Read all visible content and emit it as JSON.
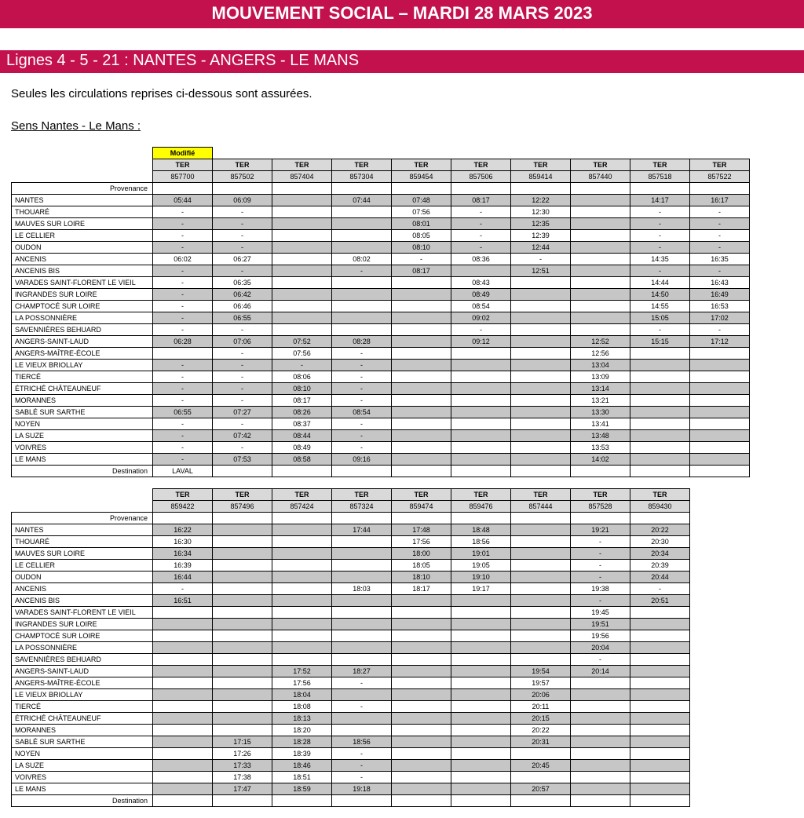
{
  "header": {
    "main_title": "MOUVEMENT SOCIAL – MARDI 28 MARS 2023",
    "sub_title": "Lignes 4 - 5 - 21 : NANTES - ANGERS - LE MANS",
    "notice": "Seules les circulations reprises ci-dessous sont assurées.",
    "direction": "Sens Nantes - Le Mans :"
  },
  "labels": {
    "modified": "Modifié",
    "provenance": "Provenance",
    "destination": "Destination",
    "ter": "TER"
  },
  "styling": {
    "brand_color": "#c3114e",
    "highlight_color": "#ffff00",
    "header_gray": "#d9d9d9",
    "row_alt_gray": "#c6c6c6",
    "font_family": "Arial",
    "title_fontsize_pt": 17,
    "subtitle_fontsize_pt": 15,
    "body_fontsize_pt": 11,
    "table_fontsize_pt": 7
  },
  "tables": [
    {
      "modified_col": 0,
      "stations": [
        "NANTES",
        "THOUARÉ",
        "MAUVES SUR LOIRE",
        "LE CELLIER",
        "OUDON",
        "ANCENIS",
        "ANCENIS BIS",
        "VARADES SAINT-FLORENT LE VIEIL",
        "INGRANDES SUR LOIRE",
        "CHAMPTOCÉ SUR LOIRE",
        "LA POSSONNIÈRE",
        "SAVENNIÈRES BEHUARD",
        "ANGERS-SAINT-LAUD",
        "ANGERS-MAÎTRE-ÉCOLE",
        "LE VIEUX BRIOLLAY",
        "TIERCÉ",
        "ÉTRICHÉ CHÂTEAUNEUF",
        "MORANNES",
        "SABLÉ SUR SARTHE",
        "NOYEN",
        "LA SUZE",
        "VOIVRES",
        "LE MANS"
      ],
      "alt": [
        true,
        false,
        true,
        false,
        true,
        false,
        true,
        false,
        true,
        false,
        true,
        false,
        true,
        false,
        true,
        false,
        true,
        false,
        true,
        false,
        true,
        false,
        true
      ],
      "trains": [
        {
          "type": "TER",
          "num": "857700",
          "dest": "LAVAL",
          "times": [
            "05:44",
            "-",
            "-",
            "-",
            "-",
            "06:02",
            "-",
            "-",
            "-",
            "-",
            "-",
            "-",
            "06:28",
            "",
            "-",
            "-",
            "-",
            "-",
            "06:55",
            "-",
            "-",
            "-",
            "-"
          ]
        },
        {
          "type": "TER",
          "num": "857502",
          "dest": "",
          "times": [
            "06:09",
            "-",
            "-",
            "-",
            "-",
            "06:27",
            "-",
            "06:35",
            "06:42",
            "06:46",
            "06:55",
            "-",
            "07:06",
            "-",
            "-",
            "-",
            "-",
            "-",
            "07:27",
            "-",
            "07:42",
            "-",
            "07:53"
          ]
        },
        {
          "type": "TER",
          "num": "857404",
          "dest": "",
          "times": [
            "",
            "",
            "",
            "",
            "",
            "",
            "",
            "",
            "",
            "",
            "",
            "",
            "07:52",
            "07:56",
            "-",
            "08:06",
            "08:10",
            "08:17",
            "08:26",
            "08:37",
            "08:44",
            "08:49",
            "08:58"
          ]
        },
        {
          "type": "TER",
          "num": "857304",
          "dest": "",
          "times": [
            "07:44",
            "",
            "",
            "",
            "",
            "08:02",
            "-",
            "",
            "",
            "",
            "",
            "",
            "08:28",
            "-",
            "-",
            "-",
            "-",
            "-",
            "08:54",
            "-",
            "-",
            "-",
            "09:16"
          ]
        },
        {
          "type": "TER",
          "num": "859454",
          "dest": "",
          "times": [
            "07:48",
            "07:56",
            "08:01",
            "08:05",
            "08:10",
            "-",
            "08:17",
            "",
            "",
            "",
            "",
            "",
            "",
            "",
            "",
            "",
            "",
            "",
            "",
            "",
            "",
            "",
            ""
          ]
        },
        {
          "type": "TER",
          "num": "857506",
          "dest": "",
          "times": [
            "08:17",
            "-",
            "-",
            "-",
            "-",
            "08:36",
            "",
            "08:43",
            "08:49",
            "08:54",
            "09:02",
            "-",
            "09:12",
            "",
            "",
            "",
            "",
            "",
            "",
            "",
            "",
            "",
            ""
          ]
        },
        {
          "type": "TER",
          "num": "859414",
          "dest": "",
          "times": [
            "12:22",
            "12:30",
            "12:35",
            "12:39",
            "12:44",
            "-",
            "12:51",
            "",
            "",
            "",
            "",
            "",
            "",
            "",
            "",
            "",
            "",
            "",
            "",
            "",
            "",
            "",
            ""
          ]
        },
        {
          "type": "TER",
          "num": "857440",
          "dest": "",
          "times": [
            "",
            "",
            "",
            "",
            "",
            "",
            "",
            "",
            "",
            "",
            "",
            "",
            "12:52",
            "12:56",
            "13:04",
            "13:09",
            "13:14",
            "13:21",
            "13:30",
            "13:41",
            "13:48",
            "13:53",
            "14:02"
          ]
        },
        {
          "type": "TER",
          "num": "857518",
          "dest": "",
          "times": [
            "14:17",
            "-",
            "-",
            "-",
            "-",
            "14:35",
            "-",
            "14:44",
            "14:50",
            "14:55",
            "15:05",
            "-",
            "15:15",
            "",
            "",
            "",
            "",
            "",
            "",
            "",
            "",
            "",
            ""
          ]
        },
        {
          "type": "TER",
          "num": "857522",
          "dest": "",
          "times": [
            "16:17",
            "-",
            "-",
            "-",
            "-",
            "16:35",
            "-",
            "16:43",
            "16:49",
            "16:53",
            "17:02",
            "-",
            "17:12",
            "",
            "",
            "",
            "",
            "",
            "",
            "",
            "",
            "",
            ""
          ]
        }
      ]
    },
    {
      "modified_col": null,
      "stations": [
        "NANTES",
        "THOUARÉ",
        "MAUVES SUR LOIRE",
        "LE CELLIER",
        "OUDON",
        "ANCENIS",
        "ANCENIS BIS",
        "VARADES SAINT-FLORENT LE VIEIL",
        "INGRANDES SUR LOIRE",
        "CHAMPTOCÉ SUR LOIRE",
        "LA POSSONNIÈRE",
        "SAVENNIÈRES BEHUARD",
        "ANGERS-SAINT-LAUD",
        "ANGERS-MAÎTRE-ÉCOLE",
        "LE VIEUX BRIOLLAY",
        "TIERCÉ",
        "ÉTRICHÉ CHÂTEAUNEUF",
        "MORANNES",
        "SABLÉ SUR SARTHE",
        "NOYEN",
        "LA SUZE",
        "VOIVRES",
        "LE MANS"
      ],
      "alt": [
        true,
        false,
        true,
        false,
        true,
        false,
        true,
        false,
        true,
        false,
        true,
        false,
        true,
        false,
        true,
        false,
        true,
        false,
        true,
        false,
        true,
        false,
        true
      ],
      "trains": [
        {
          "type": "TER",
          "num": "859422",
          "dest": "",
          "times": [
            "16:22",
            "16:30",
            "16:34",
            "16:39",
            "16:44",
            "-",
            "16:51",
            "",
            "",
            "",
            "",
            "",
            "",
            "",
            "",
            "",
            "",
            "",
            "",
            "",
            "",
            "",
            ""
          ]
        },
        {
          "type": "TER",
          "num": "857496",
          "dest": "",
          "times": [
            "",
            "",
            "",
            "",
            "",
            "",
            "",
            "",
            "",
            "",
            "",
            "",
            "",
            "",
            "",
            "",
            "",
            "",
            "17:15",
            "17:26",
            "17:33",
            "17:38",
            "17:47"
          ]
        },
        {
          "type": "TER",
          "num": "857424",
          "dest": "",
          "times": [
            "",
            "",
            "",
            "",
            "",
            "",
            "",
            "",
            "",
            "",
            "",
            "",
            "17:52",
            "17:56",
            "18:04",
            "18:08",
            "18:13",
            "18:20",
            "18:28",
            "18:39",
            "18:46",
            "18:51",
            "18:59"
          ]
        },
        {
          "type": "TER",
          "num": "857324",
          "dest": "",
          "times": [
            "17:44",
            "",
            "",
            "",
            "",
            "18:03",
            "",
            "",
            "",
            "",
            "",
            "",
            "18:27",
            "-",
            "",
            "-",
            "",
            "",
            "18:56",
            "-",
            "-",
            "-",
            "19:18"
          ]
        },
        {
          "type": "TER",
          "num": "859474",
          "dest": "",
          "times": [
            "17:48",
            "17:56",
            "18:00",
            "18:05",
            "18:10",
            "18:17",
            "",
            "",
            "",
            "",
            "",
            "",
            "",
            "",
            "",
            "",
            "",
            "",
            "",
            "",
            "",
            "",
            ""
          ]
        },
        {
          "type": "TER",
          "num": "859476",
          "dest": "",
          "times": [
            "18:48",
            "18:56",
            "19:01",
            "19:05",
            "19:10",
            "19:17",
            "",
            "",
            "",
            "",
            "",
            "",
            "",
            "",
            "",
            "",
            "",
            "",
            "",
            "",
            "",
            "",
            ""
          ]
        },
        {
          "type": "TER",
          "num": "857444",
          "dest": "",
          "times": [
            "",
            "",
            "",
            "",
            "",
            "",
            "",
            "",
            "",
            "",
            "",
            "",
            "19:54",
            "19:57",
            "20:06",
            "20:11",
            "20:15",
            "20:22",
            "20:31",
            "",
            "20:45",
            "",
            "20:57"
          ]
        },
        {
          "type": "TER",
          "num": "857528",
          "dest": "",
          "times": [
            "19:21",
            "-",
            "-",
            "-",
            "-",
            "19:38",
            "-",
            "19:45",
            "19:51",
            "19:56",
            "20:04",
            "-",
            "20:14",
            "",
            "",
            "",
            "",
            "",
            "",
            "",
            "",
            "",
            ""
          ]
        },
        {
          "type": "TER",
          "num": "859430",
          "dest": "",
          "times": [
            "20:22",
            "20:30",
            "20:34",
            "20:39",
            "20:44",
            "-",
            "20:51",
            "",
            "",
            "",
            "",
            "",
            "",
            "",
            "",
            "",
            "",
            "",
            "",
            "",
            "",
            "",
            ""
          ]
        }
      ]
    }
  ]
}
